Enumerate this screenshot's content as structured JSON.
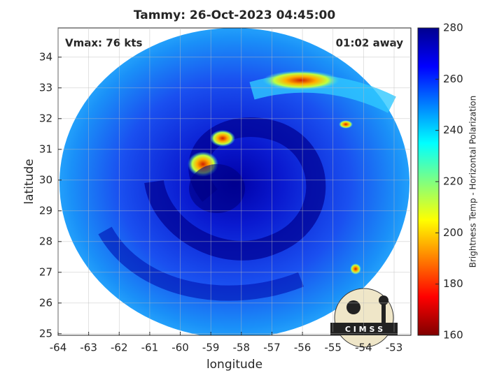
{
  "chart_data": {
    "type": "image",
    "title": "Tammy: 26-Oct-2023 04:45:00",
    "x_label": "longitude",
    "y_label": "latitude",
    "annotations": [
      "Vmax: 76 kts",
      "01:02 away"
    ],
    "logo_text": "C I M S S",
    "xlim": [
      -64,
      -52.45
    ],
    "xticks": [
      -64,
      -63,
      -62,
      -61,
      -60,
      -59,
      -58,
      -57,
      -56,
      -55,
      -54,
      -53
    ],
    "ylim": [
      24.95,
      34.95
    ],
    "yticks": [
      25,
      26,
      27,
      28,
      29,
      30,
      31,
      32,
      33,
      34
    ],
    "grid": true,
    "colorbar": {
      "label": "Brightness Temp - Horizontal Polarization",
      "colormap": "jet",
      "lim": [
        160,
        280
      ],
      "ticks": [
        160,
        180,
        200,
        220,
        240,
        260,
        280
      ]
    }
  }
}
